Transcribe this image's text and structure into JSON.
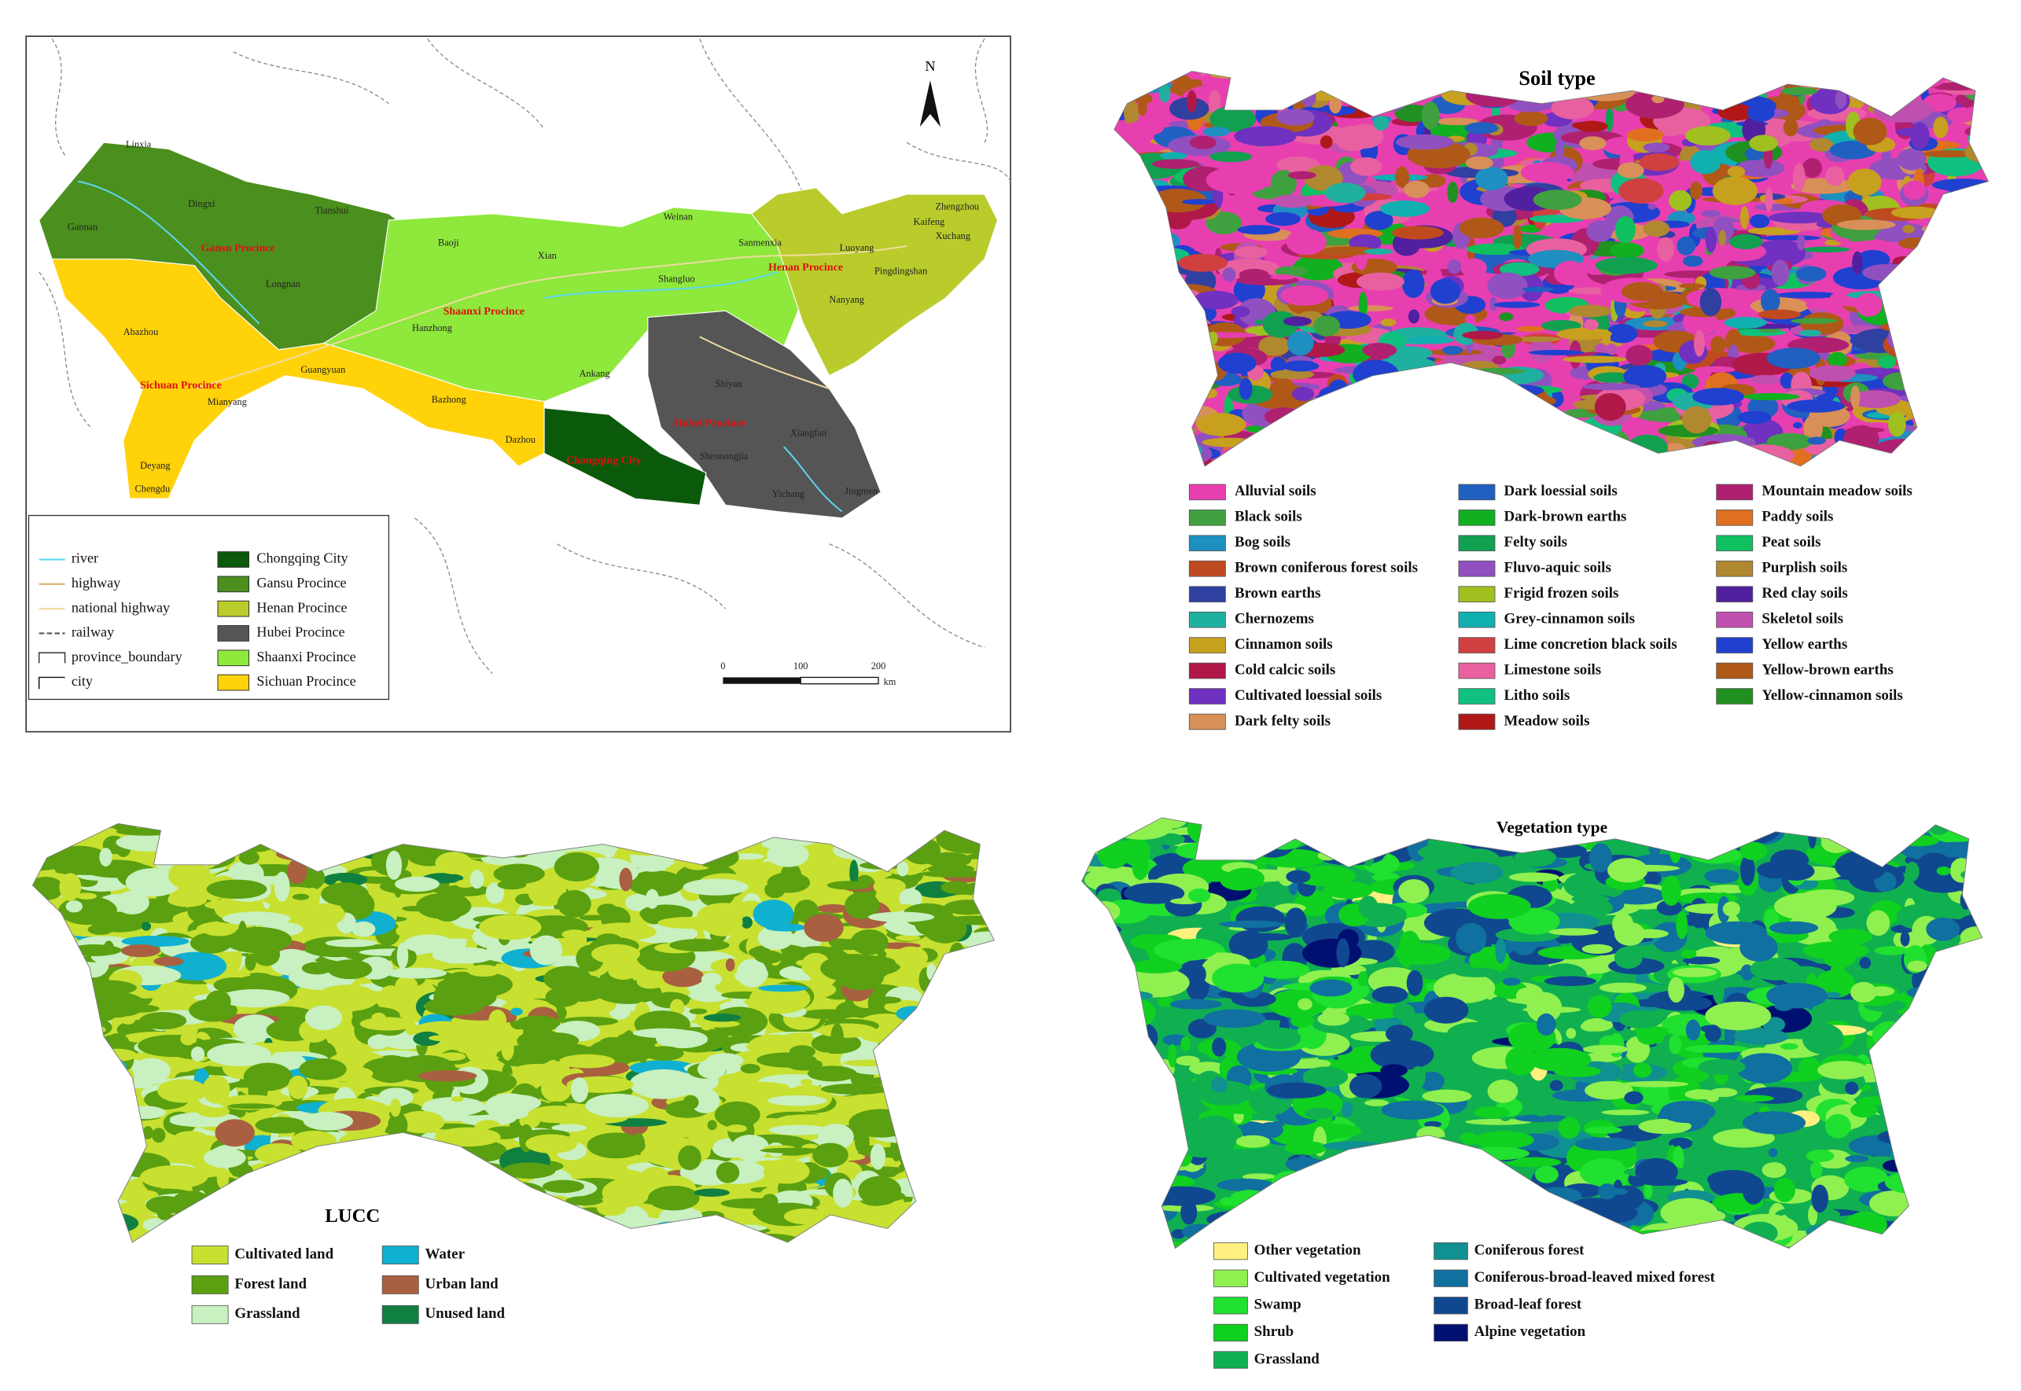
{
  "province_map": {
    "north": "N",
    "labels": [
      "Linxia",
      "Dingxi",
      "Tianshui",
      "Gannan",
      "Longnan",
      "Baoji",
      "Xian",
      "Weinan",
      "Sanmenxia",
      "Luoyang",
      "Zhengzhou",
      "Kaifeng",
      "Xuchang",
      "Pingdingshan",
      "Nanyang",
      "Shangluo",
      "Hanzhong",
      "Ankang",
      "Abazhou",
      "Guangyuan",
      "Mianyang",
      "Bazhong",
      "Dazhou",
      "Deyang",
      "Chengdu",
      "Shiyan",
      "Xiangfan",
      "Shennongjia",
      "Yichang",
      "Jingmen"
    ],
    "province_labels": [
      "Gansu Procince",
      "Henan Procince",
      "Shaanxi Procince",
      "Sichuan Procince",
      "Chongqing City",
      "Hubei Procince"
    ],
    "legend_lines": [
      "river",
      "highway",
      "national highway",
      "railway",
      "province_boundary",
      "city"
    ],
    "legend_areas": [
      {
        "name": "Chongqing City",
        "color": "#0b5a0b"
      },
      {
        "name": "Gansu Procince",
        "color": "#4b8f1e"
      },
      {
        "name": "Henan Procince",
        "color": "#b9cc2c"
      },
      {
        "name": "Hubei Procince",
        "color": "#555555"
      },
      {
        "name": "Shaanxi Procince",
        "color": "#8fe83c"
      },
      {
        "name": "Sichuan Procince",
        "color": "#ffd20a"
      }
    ],
    "scale": {
      "ticks": [
        "0",
        "100",
        "200"
      ],
      "unit": "km"
    }
  },
  "soil_map": {
    "title": "Soil type",
    "legend": [
      {
        "name": "Alluvial soils",
        "color": "#e83fb0"
      },
      {
        "name": "Black soils",
        "color": "#3fa03f"
      },
      {
        "name": "Bog soils",
        "color": "#1e8fc0"
      },
      {
        "name": "Brown coniferous forest soils",
        "color": "#c04a20"
      },
      {
        "name": "Brown earths",
        "color": "#3040a0"
      },
      {
        "name": "Chernozems",
        "color": "#20b0a0"
      },
      {
        "name": "Cinnamon soils",
        "color": "#c8a020"
      },
      {
        "name": "Cold calcic soils",
        "color": "#b01848"
      },
      {
        "name": "Cultivated loessial soils",
        "color": "#7030c0"
      },
      {
        "name": "Dark felty soils",
        "color": "#d89058"
      },
      {
        "name": "Dark loessial soils",
        "color": "#2060c0"
      },
      {
        "name": "Dark-brown earths",
        "color": "#10b020"
      },
      {
        "name": "Felty soils",
        "color": "#10a050"
      },
      {
        "name": "Fluvo-aquic soils",
        "color": "#9050c0"
      },
      {
        "name": "Frigid frozen soils",
        "color": "#a0c020"
      },
      {
        "name": "Grey-cinnamon soils",
        "color": "#10b0b0"
      },
      {
        "name": "Lime concretion black soils",
        "color": "#d04040"
      },
      {
        "name": "Limestone soils",
        "color": "#e860a0"
      },
      {
        "name": "Litho soils",
        "color": "#10c080"
      },
      {
        "name": "Meadow soils",
        "color": "#b01818"
      },
      {
        "name": "Mountain meadow soils",
        "color": "#b02070"
      },
      {
        "name": "Paddy soils",
        "color": "#e07020"
      },
      {
        "name": "Peat soils",
        "color": "#10c060"
      },
      {
        "name": "Purplish soils",
        "color": "#b08830"
      },
      {
        "name": "Red clay soils",
        "color": "#5020a0"
      },
      {
        "name": "Skeletol soils",
        "color": "#c050b0"
      },
      {
        "name": "Yellow earths",
        "color": "#2040d0"
      },
      {
        "name": "Yellow-brown earths",
        "color": "#b05818"
      },
      {
        "name": "Yellow-cinnamon soils",
        "color": "#209020"
      }
    ]
  },
  "lucc_map": {
    "title": "LUCC",
    "legend": [
      {
        "name": "Cultivated land",
        "color": "#c8e030"
      },
      {
        "name": "Forest land",
        "color": "#5aa010"
      },
      {
        "name": "Grassland",
        "color": "#c8f0c0"
      },
      {
        "name": "Water",
        "color": "#10b0d0"
      },
      {
        "name": "Urban land",
        "color": "#a86040"
      },
      {
        "name": "Unused land",
        "color": "#108040"
      }
    ]
  },
  "vegetation_map": {
    "title": "Vegetation type",
    "legend": [
      {
        "name": "Other vegetation",
        "color": "#fff080"
      },
      {
        "name": "Cultivated vegetation",
        "color": "#90f050"
      },
      {
        "name": "Swamp",
        "color": "#20e030"
      },
      {
        "name": "Shrub",
        "color": "#10d020"
      },
      {
        "name": "Grassland",
        "color": "#10b050"
      },
      {
        "name": "Coniferous forest",
        "color": "#109090"
      },
      {
        "name": "Coniferous-broad-leaved mixed forest",
        "color": "#1070a0"
      },
      {
        "name": "Broad-leaf forest",
        "color": "#104890"
      },
      {
        "name": "Alpine vegetation",
        "color": "#001070"
      }
    ]
  }
}
